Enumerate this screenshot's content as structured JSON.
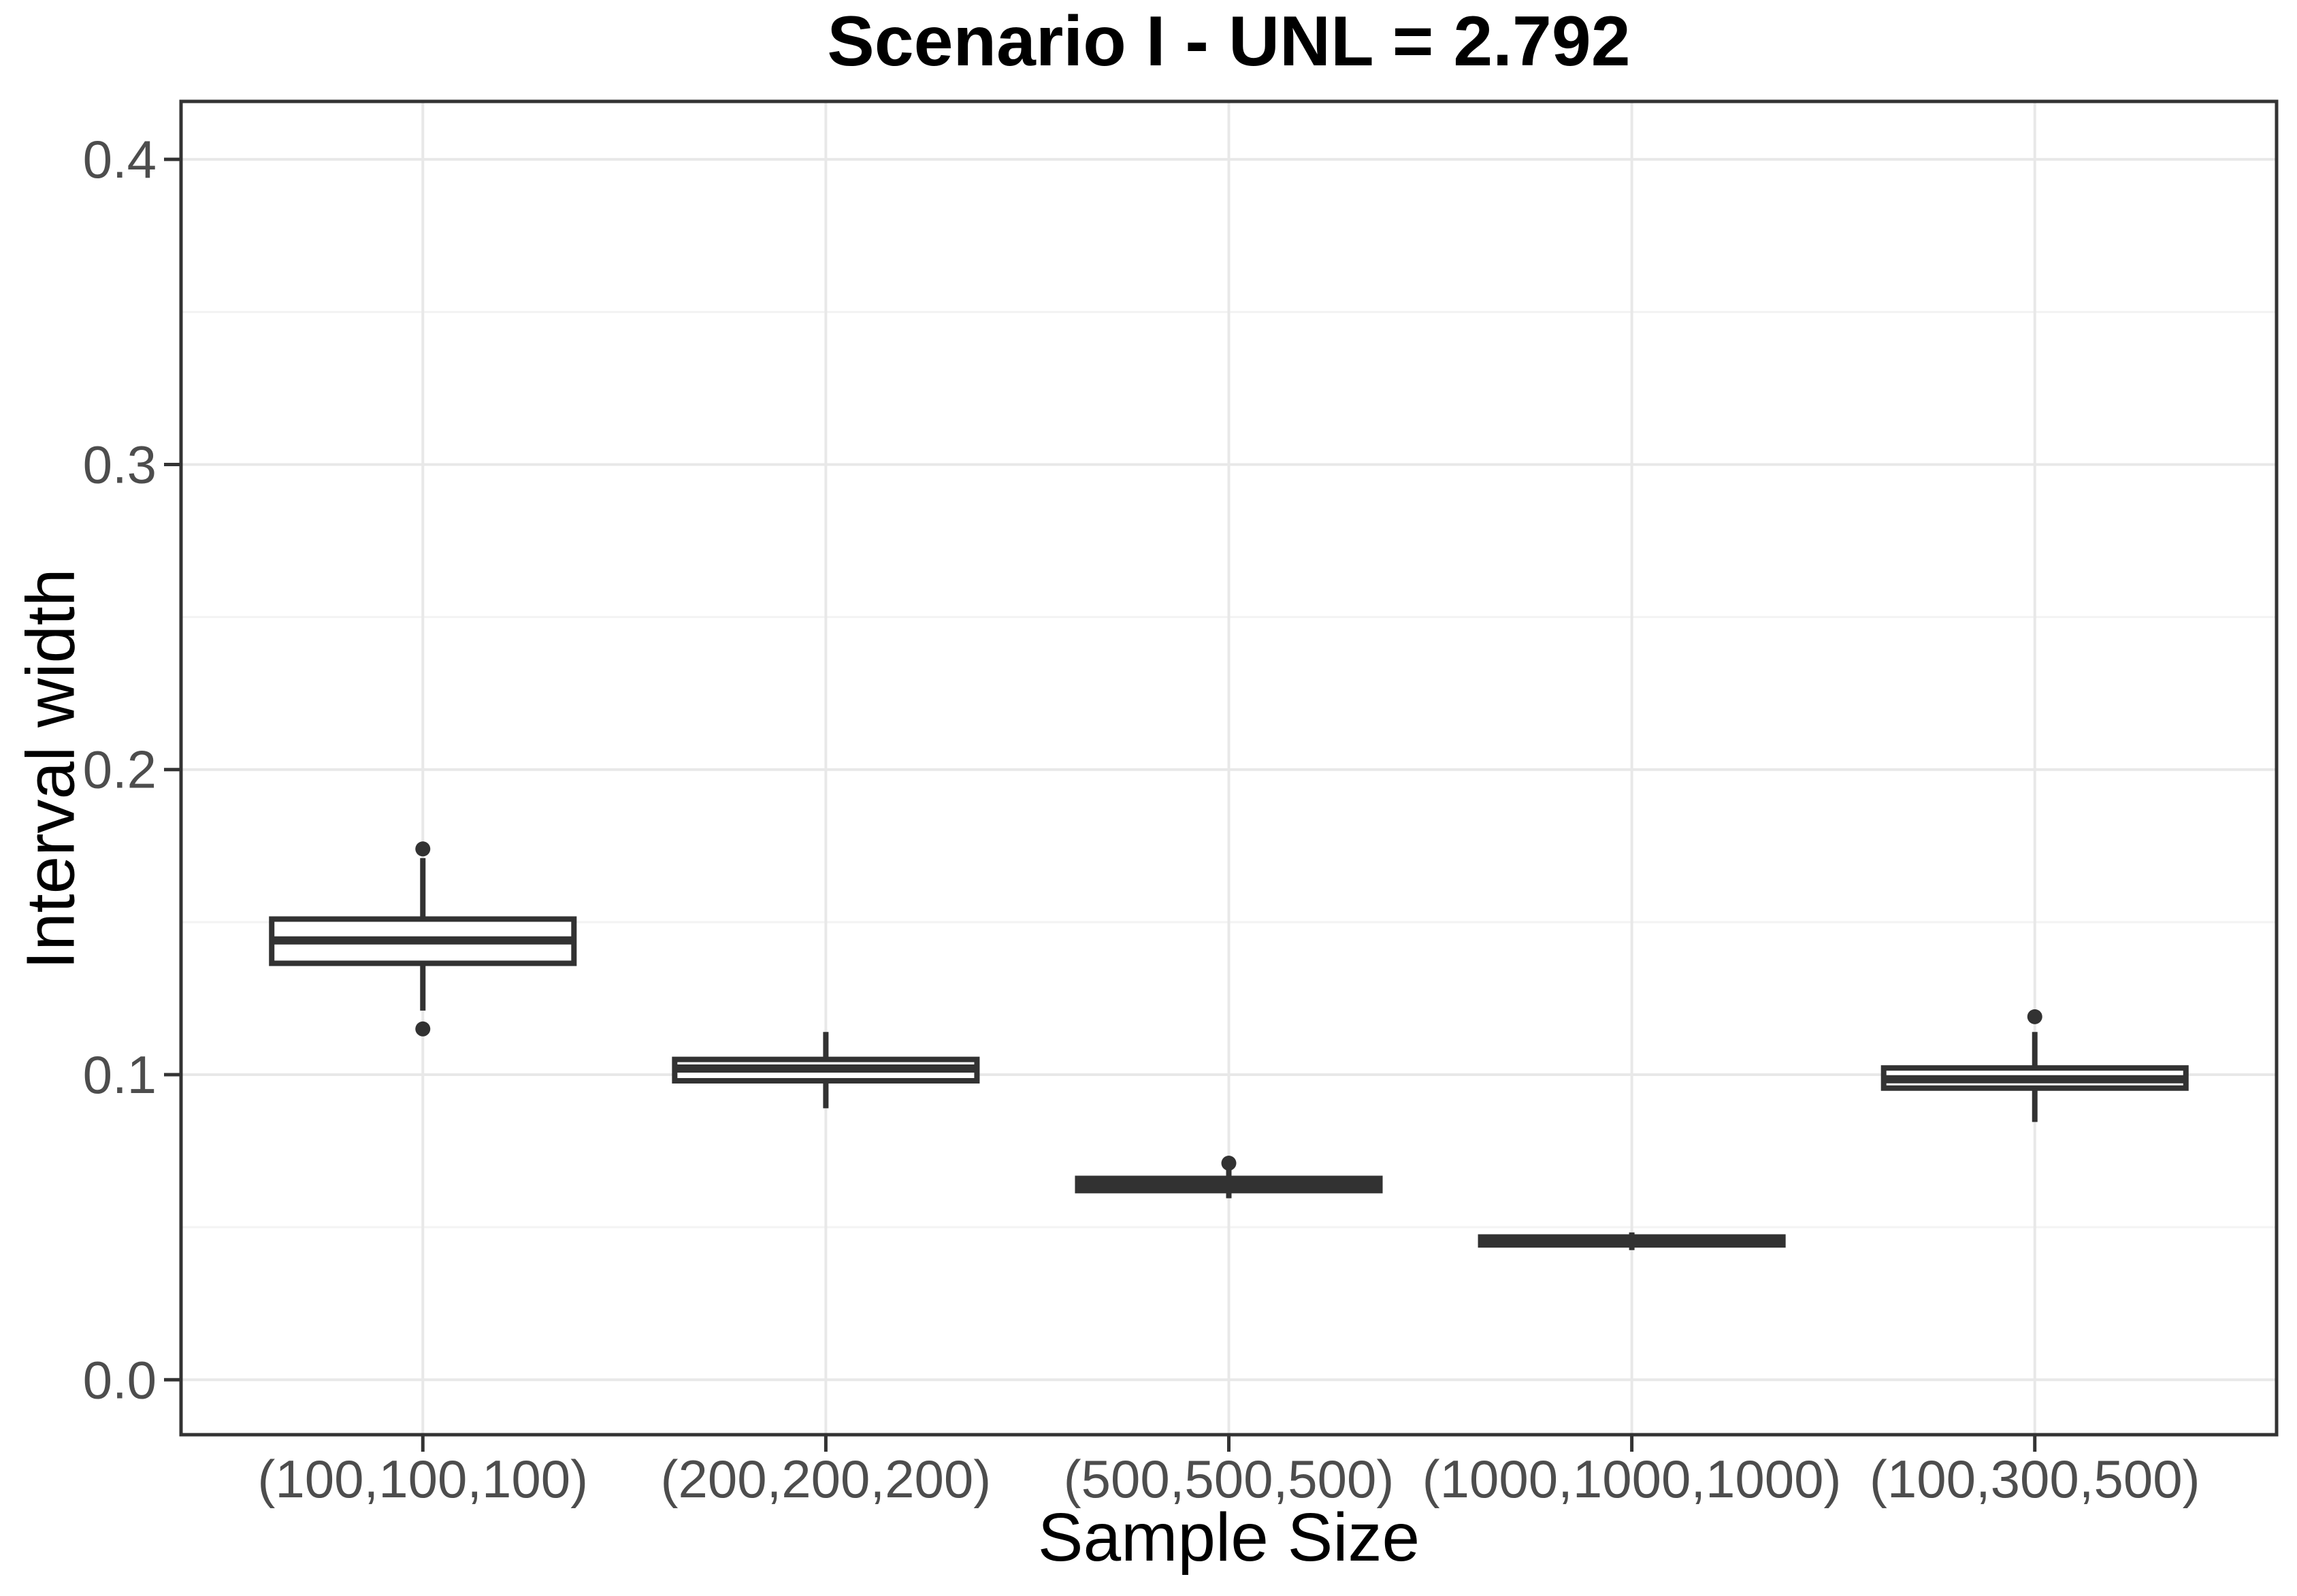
{
  "chart_data": {
    "type": "boxplot",
    "title": "Scenario I - UNL = 2.792",
    "xlabel": "Sample Size",
    "ylabel": "Interval width",
    "categories": [
      "(100,100,100)",
      "(200,200,200)",
      "(500,500,500)",
      "(1000,1000,1000)",
      "(100,300,500)"
    ],
    "boxes": [
      {
        "category": "(100,100,100)",
        "whisker_low": 0.121,
        "q1": 0.1365,
        "median": 0.144,
        "q3": 0.151,
        "whisker_high": 0.171,
        "outliers": [
          0.174,
          0.115
        ]
      },
      {
        "category": "(200,200,200)",
        "whisker_low": 0.089,
        "q1": 0.098,
        "median": 0.102,
        "q3": 0.105,
        "whisker_high": 0.114,
        "outliers": []
      },
      {
        "category": "(500,500,500)",
        "whisker_low": 0.0595,
        "q1": 0.062,
        "median": 0.064,
        "q3": 0.066,
        "whisker_high": 0.069,
        "outliers": [
          0.071
        ]
      },
      {
        "category": "(1000,1000,1000)",
        "whisker_low": 0.0425,
        "q1": 0.0442,
        "median": 0.0455,
        "q3": 0.0468,
        "whisker_high": 0.0483,
        "outliers": []
      },
      {
        "category": "(100,300,500)",
        "whisker_low": 0.0845,
        "q1": 0.0956,
        "median": 0.0985,
        "q3": 0.1022,
        "whisker_high": 0.114,
        "outliers": [
          0.119
        ]
      }
    ],
    "ylim": [
      -0.018,
      0.419
    ],
    "y_major_ticks": [
      0.0,
      0.1,
      0.2,
      0.3,
      0.4
    ],
    "y_tick_labels": [
      "0.0",
      "0.1",
      "0.2",
      "0.3",
      "0.4"
    ],
    "y_minor_gridlines": [
      0.05,
      0.15,
      0.25,
      0.35
    ],
    "grid": true,
    "legend": false
  },
  "colors": {
    "box_stroke": "#323232",
    "box_fill": "#ffffff",
    "panel_border": "#333333",
    "tick_mark": "#333333",
    "tick_label": "#4d4d4d",
    "grid_major": "#e8e8e8",
    "grid_minor": "#f3f3f3",
    "background": "#ffffff",
    "title_text": "#000000"
  }
}
